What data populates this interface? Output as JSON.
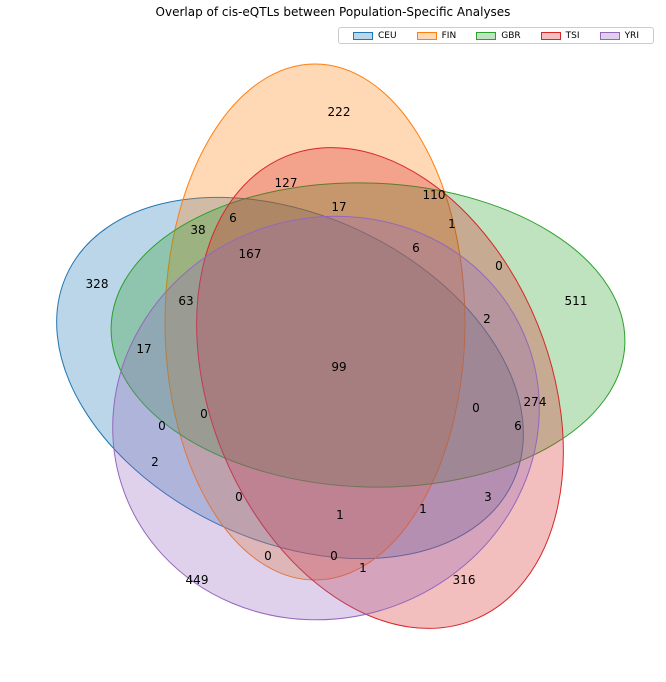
{
  "title": "Overlap of cis-eQTLs between Population-Specific Analyses",
  "sets": [
    {
      "name": "CEU",
      "color": "#1f77b4"
    },
    {
      "name": "FIN",
      "color": "#ff7f0e"
    },
    {
      "name": "GBR",
      "color": "#2ca02c"
    },
    {
      "name": "TSI",
      "color": "#d62728"
    },
    {
      "name": "YRI",
      "color": "#9467bd"
    }
  ],
  "regions": [
    {
      "key": "FIN_only",
      "value": "222"
    },
    {
      "key": "FIN_TSI",
      "value": "127"
    },
    {
      "key": "FIN_GBR",
      "value": "110"
    },
    {
      "key": "FIN_GBR_TSI",
      "value": "17"
    },
    {
      "key": "CEU_FIN_TSI",
      "value": "6"
    },
    {
      "key": "CEU_FIN",
      "value": "38"
    },
    {
      "key": "FIN_GBR_YRI",
      "value": "1"
    },
    {
      "key": "CEU_FIN_GBR_TSI",
      "value": "167"
    },
    {
      "key": "FIN_GBR_TSI_YRI",
      "value": "6"
    },
    {
      "key": "GBR_YRI",
      "value": "0"
    },
    {
      "key": "CEU_only",
      "value": "328"
    },
    {
      "key": "GBR_only",
      "value": "511"
    },
    {
      "key": "CEU_GBR_TSI",
      "value": "63"
    },
    {
      "key": "GBR_TSI_YRI",
      "value": "2"
    },
    {
      "key": "CEU_GBR",
      "value": "17"
    },
    {
      "key": "all",
      "value": "99"
    },
    {
      "key": "CEU_GBR_YRI",
      "value": "0"
    },
    {
      "key": "CEU_FIN_GBR_YRI",
      "value": "0"
    },
    {
      "key": "GBR_TSI",
      "value": "274"
    },
    {
      "key": "CEU_GBR_TSI_YRI",
      "value": "0"
    },
    {
      "key": "CEU_YRI",
      "value": "2"
    },
    {
      "key": "GBR_TSI_extra",
      "value": "6"
    },
    {
      "key": "CEU_FIN_YRI",
      "value": "0"
    },
    {
      "key": "TSI_YRI",
      "value": "3"
    },
    {
      "key": "CEU_FIN_TSI_YRI",
      "value": "1"
    },
    {
      "key": "FIN_TSI_YRI",
      "value": "1"
    },
    {
      "key": "FIN_YRI",
      "value": "0"
    },
    {
      "key": "CEU_TSI_YRI",
      "value": "0"
    },
    {
      "key": "CEU_TSI",
      "value": "1"
    },
    {
      "key": "YRI_only",
      "value": "449"
    },
    {
      "key": "TSI_only",
      "value": "316"
    }
  ]
}
